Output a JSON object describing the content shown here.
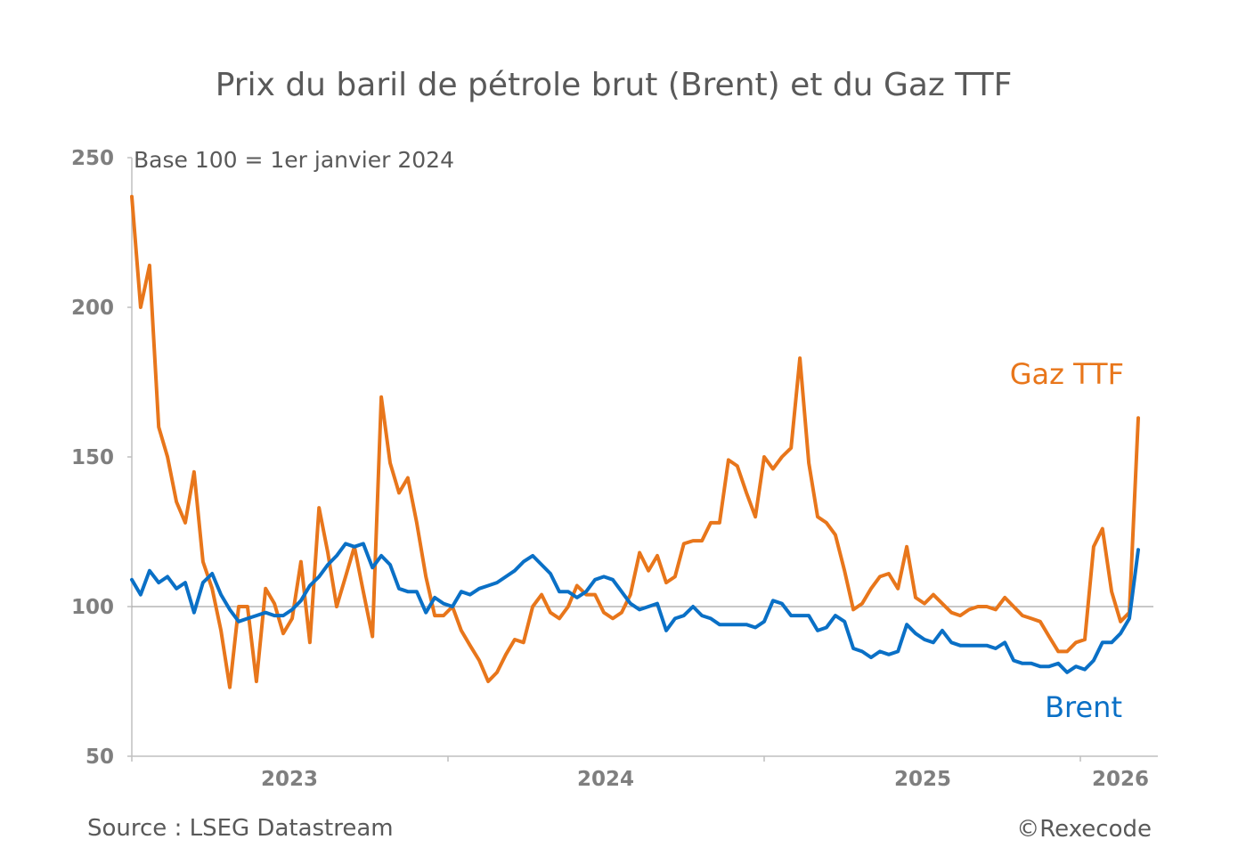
{
  "chart_data": {
    "type": "line",
    "title": "Prix du baril de pétrole brut (Brent) et du Gaz TTF",
    "subtitle": "Base 100 = 1er janvier 2024",
    "xlabel": "",
    "ylabel": "",
    "ylim": [
      50,
      250
    ],
    "xlim": [
      2023.0,
      2026.43
    ],
    "y_ticks": [
      "50",
      "100",
      "150",
      "200",
      "250"
    ],
    "x_ticks": [
      "2023",
      "2024",
      "2025",
      "2026"
    ],
    "reference_line": 100,
    "grid": false,
    "legend": "inline labels at right end of series",
    "x": [
      2023.0,
      2023.028,
      2023.056,
      2023.085,
      2023.113,
      2023.141,
      2023.169,
      2023.197,
      2023.225,
      2023.254,
      2023.282,
      2023.31,
      2023.338,
      2023.366,
      2023.394,
      2023.423,
      2023.451,
      2023.479,
      2023.507,
      2023.535,
      2023.563,
      2023.592,
      2023.62,
      2023.648,
      2023.676,
      2023.704,
      2023.732,
      2023.761,
      2023.789,
      2023.817,
      2023.845,
      2023.873,
      2023.901,
      2023.93,
      2023.958,
      2023.986,
      2024.014,
      2024.042,
      2024.07,
      2024.099,
      2024.127,
      2024.155,
      2024.183,
      2024.211,
      2024.239,
      2024.268,
      2024.296,
      2024.324,
      2024.352,
      2024.38,
      2024.408,
      2024.437,
      2024.465,
      2024.493,
      2024.521,
      2024.549,
      2024.577,
      2024.606,
      2024.634,
      2024.662,
      2024.69,
      2024.718,
      2024.746,
      2024.775,
      2024.803,
      2024.831,
      2024.859,
      2024.887,
      2024.915,
      2024.944,
      2024.972,
      2025.0,
      2025.028,
      2025.056,
      2025.085,
      2025.113,
      2025.141,
      2025.169,
      2025.197,
      2025.225,
      2025.254,
      2025.282,
      2025.31,
      2025.338,
      2025.366,
      2025.394,
      2025.423,
      2025.451,
      2025.479,
      2025.507,
      2025.535,
      2025.563,
      2025.592,
      2025.62,
      2025.648,
      2025.676,
      2025.704,
      2025.732,
      2025.761,
      2025.789,
      2025.817,
      2025.845,
      2025.873,
      2025.901,
      2025.93,
      2025.958,
      2025.986,
      2026.014,
      2026.042,
      2026.07,
      2026.099,
      2026.127,
      2026.155,
      2026.183
    ],
    "series": [
      {
        "name": "Gaz TTF",
        "color": "#E8761B",
        "values": [
          237,
          200,
          214,
          160,
          150,
          135,
          128,
          145,
          115,
          106,
          92,
          73,
          100,
          100,
          75,
          106,
          101,
          91,
          96,
          115,
          88,
          133,
          118,
          100,
          110,
          120,
          105,
          90,
          170,
          148,
          138,
          143,
          128,
          110,
          97,
          97,
          100,
          92,
          87,
          82,
          75,
          78,
          84,
          89,
          88,
          100,
          104,
          98,
          96,
          100,
          107,
          104,
          104,
          98,
          96,
          98,
          104,
          118,
          112,
          117,
          108,
          110,
          121,
          122,
          122,
          128,
          128,
          149,
          147,
          138,
          130,
          150,
          146,
          150,
          153,
          183,
          148,
          130,
          128,
          124,
          112,
          99,
          101,
          106,
          110,
          111,
          106,
          120,
          103,
          101,
          104,
          101,
          98,
          97,
          99,
          100,
          100,
          99,
          103,
          100,
          97,
          96,
          95,
          90,
          85,
          85,
          88,
          89,
          120,
          126,
          105,
          95,
          98,
          163
        ]
      },
      {
        "name": "Brent",
        "color": "#0A70C6",
        "values": [
          109,
          104,
          112,
          108,
          110,
          106,
          108,
          98,
          108,
          111,
          104,
          99,
          95,
          96,
          97,
          98,
          97,
          97,
          99,
          102,
          107,
          110,
          114,
          117,
          121,
          120,
          121,
          113,
          117,
          114,
          106,
          105,
          105,
          98,
          103,
          101,
          100,
          105,
          104,
          106,
          107,
          108,
          110,
          112,
          115,
          117,
          114,
          111,
          105,
          105,
          103,
          105,
          109,
          110,
          109,
          105,
          101,
          99,
          100,
          101,
          92,
          96,
          97,
          100,
          97,
          96,
          94,
          94,
          94,
          94,
          93,
          95,
          102,
          101,
          97,
          97,
          97,
          92,
          93,
          97,
          95,
          86,
          85,
          83,
          85,
          84,
          85,
          94,
          91,
          89,
          88,
          92,
          88,
          87,
          87,
          87,
          87,
          86,
          88,
          82,
          81,
          81,
          80,
          80,
          81,
          78,
          80,
          79,
          82,
          88,
          88,
          91,
          96,
          119
        ]
      }
    ]
  },
  "footer": {
    "source": "Source : LSEG Datastream",
    "copyright": "©Rexecode"
  }
}
